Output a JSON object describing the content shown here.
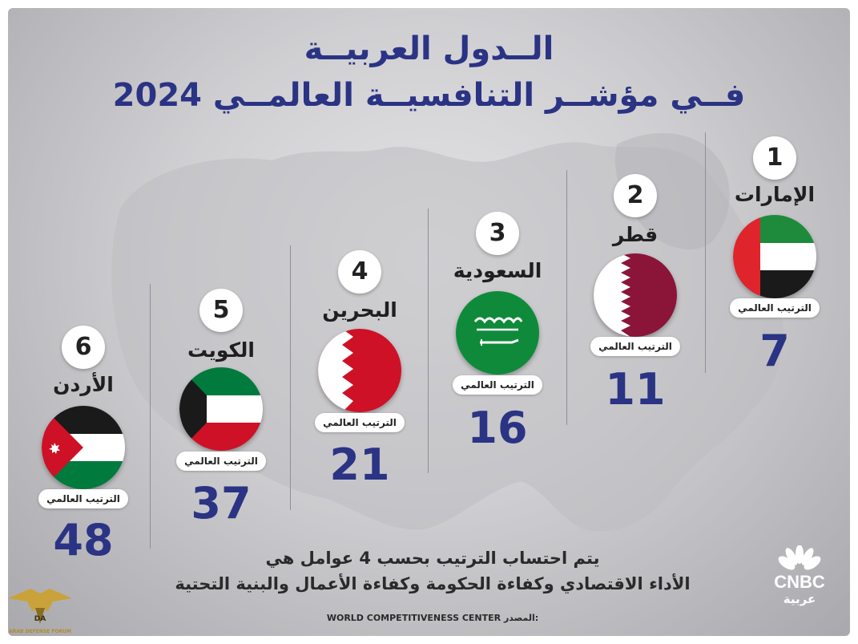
{
  "title": {
    "line1": "الــدول العربيــة",
    "line2": "فــي مؤشــر التنافسيــة العالمــي 2024"
  },
  "countries": [
    {
      "rank": "1",
      "name": "الإمارات",
      "pill": "الترتيب العالمي",
      "world_rank": "7"
    },
    {
      "rank": "2",
      "name": "قطر",
      "pill": "الترتيب العالمي",
      "world_rank": "11"
    },
    {
      "rank": "3",
      "name": "السعودية",
      "pill": "الترتيب العالمي",
      "world_rank": "16"
    },
    {
      "rank": "4",
      "name": "البحرين",
      "pill": "الترتيب العالمي",
      "world_rank": "21"
    },
    {
      "rank": "5",
      "name": "الكويت",
      "pill": "الترتيب العالمي",
      "world_rank": "37"
    },
    {
      "rank": "6",
      "name": "الأردن",
      "pill": "الترتيب العالمي",
      "world_rank": "48"
    }
  ],
  "note": {
    "line1": "يتم احتساب الترتيب بحسب 4 عوامل هي",
    "line2": "الأداء الاقتصادي وكفاءة الحكومة وكفاءة الأعمال والبنية التحتية"
  },
  "source": {
    "label": "المصدر:",
    "value": "WORLD COMPETITIVENESS CENTER"
  },
  "brand": {
    "name": "CNBC",
    "sub": "عربية"
  },
  "watermark": {
    "initials": "DA",
    "text": "ARAB DEFENSE FORUM"
  },
  "colors": {
    "title": "#2b3384",
    "score": "#2b3384"
  }
}
